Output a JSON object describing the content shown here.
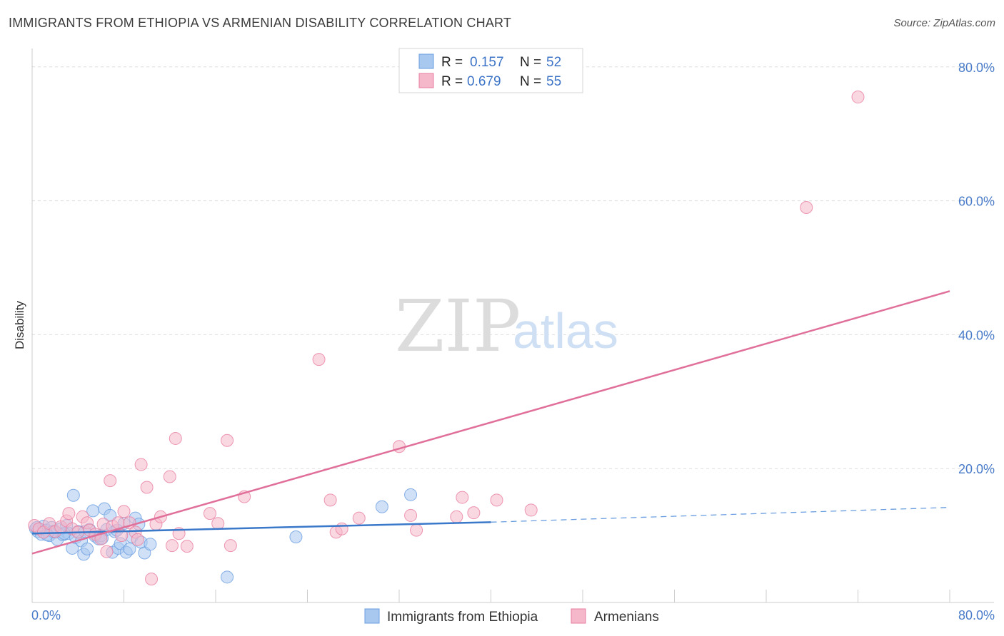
{
  "header": {
    "title": "IMMIGRANTS FROM ETHIOPIA VS ARMENIAN DISABILITY CORRELATION CHART",
    "source": "Source: ZipAtlas.com"
  },
  "watermark": {
    "part1": "ZIP",
    "part2": "atlas"
  },
  "legend": {
    "rows": [
      {
        "r_label": "R =",
        "r_value": "0.157",
        "n_label": "N =",
        "n_value": "52",
        "color": "#a9c8f0"
      },
      {
        "r_label": "R =",
        "r_value": "0.679",
        "n_label": "N =",
        "n_value": "55",
        "color": "#f5b8cb"
      }
    ]
  },
  "bottom_legend": {
    "items": [
      {
        "label": "Immigrants from Ethiopia",
        "color": "#a9c8f0"
      },
      {
        "label": "Armenians",
        "color": "#f5b8cb"
      }
    ]
  },
  "chart_data": {
    "type": "scatter",
    "title": "IMMIGRANTS FROM ETHIOPIA VS ARMENIAN DISABILITY CORRELATION CHART",
    "xlabel": "",
    "ylabel": "Disability",
    "xlim": [
      0,
      80
    ],
    "ylim": [
      0,
      82
    ],
    "x_tick_labels": [
      "0.0%",
      "80.0%"
    ],
    "y_ticks": [
      20,
      40,
      60,
      80
    ],
    "y_tick_labels": [
      "20.0%",
      "40.0%",
      "60.0%",
      "80.0%"
    ],
    "grid": true,
    "legend_position": "top-center",
    "series": [
      {
        "name": "Immigrants from Ethiopia",
        "color": "#6a9ee0",
        "fill": "#a9c8f0",
        "trend": {
          "x0": 0,
          "y0": 10.3,
          "x1": 40,
          "y1": 12.0,
          "dashed_to_x": 80,
          "dashed_to_y": 14.2
        },
        "points": [
          [
            0.3,
            11.0
          ],
          [
            0.5,
            10.6
          ],
          [
            0.8,
            10.2
          ],
          [
            1.0,
            11.4
          ],
          [
            1.2,
            10.8
          ],
          [
            1.5,
            10.0
          ],
          [
            1.7,
            11.2
          ],
          [
            2.0,
            10.5
          ],
          [
            2.2,
            9.4
          ],
          [
            2.5,
            11.0
          ],
          [
            2.7,
            10.1
          ],
          [
            3.0,
            11.5
          ],
          [
            3.2,
            10.3
          ],
          [
            3.5,
            8.1
          ],
          [
            3.8,
            9.7
          ],
          [
            4.0,
            10.6
          ],
          [
            4.3,
            9.2
          ],
          [
            4.5,
            7.2
          ],
          [
            4.8,
            8.0
          ],
          [
            5.0,
            10.9
          ],
          [
            5.3,
            13.7
          ],
          [
            5.5,
            9.9
          ],
          [
            5.8,
            9.5
          ],
          [
            6.0,
            10.0
          ],
          [
            6.3,
            14.0
          ],
          [
            6.5,
            10.9
          ],
          [
            6.8,
            13.0
          ],
          [
            7.0,
            7.5
          ],
          [
            7.2,
            10.6
          ],
          [
            7.5,
            8.1
          ],
          [
            7.7,
            8.8
          ],
          [
            8.0,
            11.8
          ],
          [
            8.2,
            7.5
          ],
          [
            8.5,
            8.0
          ],
          [
            8.7,
            9.8
          ],
          [
            9.0,
            12.6
          ],
          [
            9.3,
            11.7
          ],
          [
            9.5,
            9.0
          ],
          [
            9.8,
            7.4
          ],
          [
            10.3,
            8.7
          ],
          [
            3.6,
            16.0
          ],
          [
            1.8,
            10.6
          ],
          [
            2.8,
            10.3
          ],
          [
            4.6,
            10.6
          ],
          [
            6.1,
            9.6
          ],
          [
            7.4,
            10.8
          ],
          [
            23.0,
            9.8
          ],
          [
            30.5,
            14.3
          ],
          [
            33.0,
            16.1
          ],
          [
            17.0,
            3.8
          ],
          [
            0.4,
            11.2
          ],
          [
            1.3,
            10.1
          ]
        ]
      },
      {
        "name": "Armenians",
        "color": "#e87ea0",
        "fill": "#f5b8cb",
        "trend": {
          "x0": 0,
          "y0": 7.3,
          "x1": 80,
          "y1": 46.5
        },
        "points": [
          [
            0.2,
            11.5
          ],
          [
            0.6,
            11.0
          ],
          [
            1.0,
            10.5
          ],
          [
            1.5,
            11.8
          ],
          [
            2.0,
            10.6
          ],
          [
            2.5,
            11.3
          ],
          [
            3.0,
            12.2
          ],
          [
            3.2,
            13.3
          ],
          [
            3.5,
            11.0
          ],
          [
            4.0,
            10.5
          ],
          [
            4.4,
            12.8
          ],
          [
            4.8,
            11.9
          ],
          [
            5.0,
            10.8
          ],
          [
            5.5,
            10.2
          ],
          [
            6.0,
            9.5
          ],
          [
            6.2,
            11.7
          ],
          [
            6.5,
            7.6
          ],
          [
            6.8,
            18.2
          ],
          [
            7.0,
            11.4
          ],
          [
            7.5,
            11.9
          ],
          [
            7.8,
            10.0
          ],
          [
            8.0,
            13.6
          ],
          [
            8.5,
            11.9
          ],
          [
            9.0,
            10.5
          ],
          [
            9.2,
            9.4
          ],
          [
            9.5,
            20.6
          ],
          [
            10.0,
            17.2
          ],
          [
            10.4,
            3.5
          ],
          [
            10.8,
            11.7
          ],
          [
            11.2,
            12.8
          ],
          [
            12.0,
            18.8
          ],
          [
            12.2,
            8.5
          ],
          [
            12.5,
            24.5
          ],
          [
            12.8,
            10.3
          ],
          [
            13.5,
            8.4
          ],
          [
            15.5,
            13.3
          ],
          [
            16.2,
            11.8
          ],
          [
            17.0,
            24.2
          ],
          [
            17.3,
            8.5
          ],
          [
            18.5,
            15.8
          ],
          [
            25.0,
            36.3
          ],
          [
            26.0,
            15.3
          ],
          [
            26.5,
            10.5
          ],
          [
            27.0,
            11.0
          ],
          [
            28.5,
            12.6
          ],
          [
            32.0,
            23.3
          ],
          [
            33.0,
            13.0
          ],
          [
            33.5,
            10.8
          ],
          [
            37.0,
            12.8
          ],
          [
            37.5,
            15.7
          ],
          [
            38.5,
            13.4
          ],
          [
            40.5,
            15.3
          ],
          [
            43.5,
            13.8
          ],
          [
            67.5,
            59.0
          ],
          [
            72.0,
            75.5
          ]
        ]
      }
    ]
  }
}
